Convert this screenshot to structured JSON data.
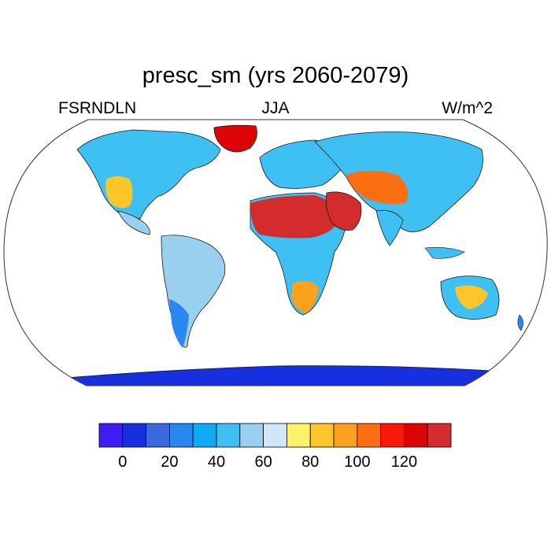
{
  "title": "presc_sm (yrs 2060-2079)",
  "subtitle_left": "FSRNDLN",
  "subtitle_center": "JJA",
  "subtitle_right": "W/m^2",
  "colorbar": {
    "colors": [
      "#3f1cf2",
      "#1630e0",
      "#3b68dc",
      "#2a86f0",
      "#0fa9f5",
      "#3ec0f2",
      "#9ad0ef",
      "#cfe7f8",
      "#fdf06a",
      "#fcc62b",
      "#fca11e",
      "#fb6e12",
      "#f91809",
      "#dc0404",
      "#d42c2c"
    ],
    "tick_labels": [
      "0",
      "20",
      "40",
      "60",
      "80",
      "100",
      "120"
    ]
  },
  "legend_colors": {
    "land_default": "#3ec0f2",
    "ocean": "#ffffff",
    "coastline": "#1a1a1a",
    "antarctica": "#1630e0"
  }
}
